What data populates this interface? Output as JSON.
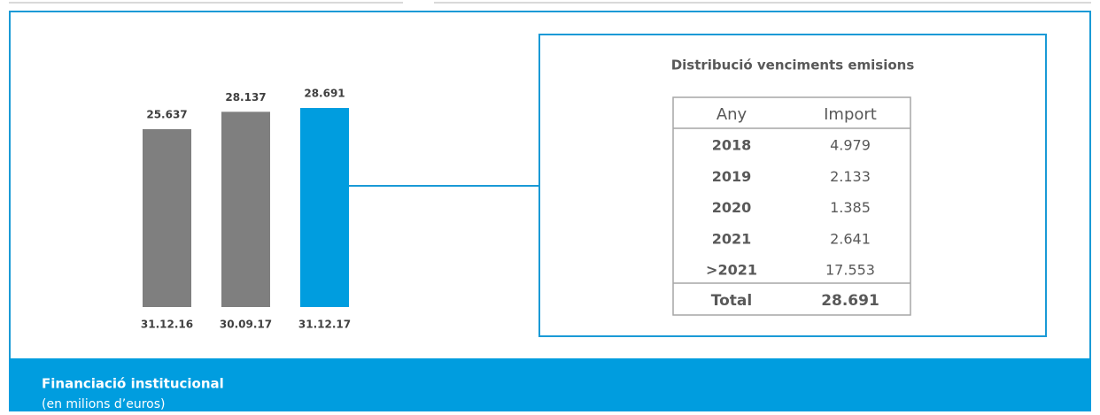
{
  "chart_data": {
    "type": "bar",
    "categories": [
      "31.12.16",
      "30.09.17",
      "31.12.17"
    ],
    "values": [
      25637,
      28137,
      28691
    ],
    "value_labels": [
      "25.637",
      "28.137",
      "28.691"
    ],
    "colors": [
      "#7f7f7f",
      "#7f7f7f",
      "#009ddf"
    ]
  },
  "table": {
    "title": "Distribució venciments emisions",
    "header": [
      "Any",
      "Import"
    ],
    "rows": [
      [
        "2018",
        "4.979"
      ],
      [
        "2019",
        "2.133"
      ],
      [
        "2020",
        "1.385"
      ],
      [
        "2021",
        "2.641"
      ],
      [
        ">2021",
        "17.553"
      ]
    ],
    "total": [
      "Total",
      "28.691"
    ]
  },
  "footer": {
    "title": "Financiació institucional",
    "subtitle": "(en milions d’euros)"
  }
}
